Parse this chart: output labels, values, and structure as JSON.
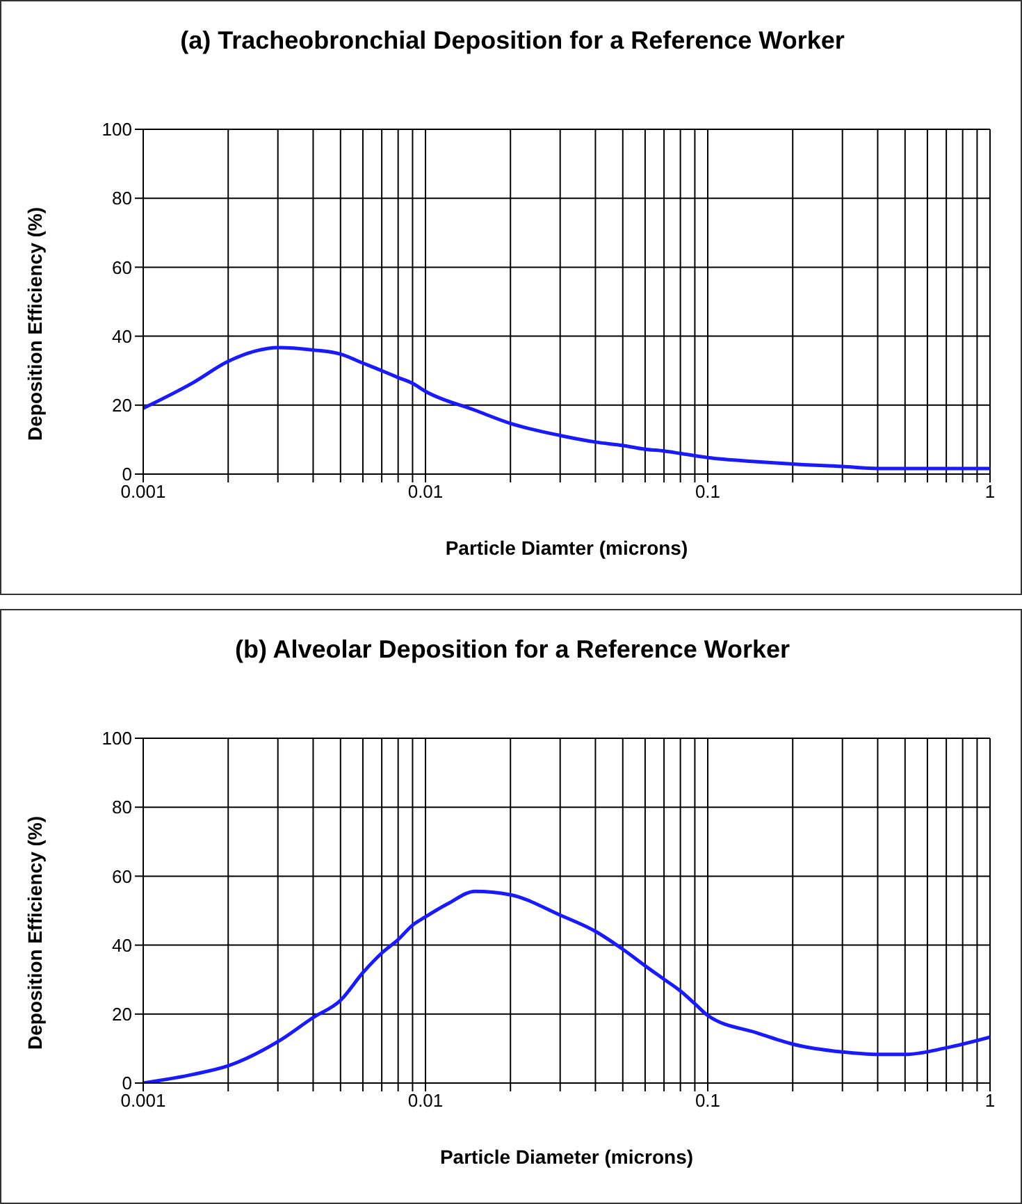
{
  "chart_data": [
    {
      "type": "line",
      "title": "(a) Tracheobronchial Deposition for a Reference Worker",
      "xlabel": "Particle Diamter (microns)",
      "ylabel": "Deposition Efficiency (%)",
      "log": "x",
      "xlim": [
        0.001,
        1
      ],
      "xticks": [
        0.001,
        {
          "value": 0.002,
          "label": null
        },
        {
          "value": 0.003,
          "label": null
        },
        {
          "value": 0.004,
          "label": null
        },
        {
          "value": 0.005,
          "label": null
        },
        {
          "value": 0.006,
          "label": null
        },
        {
          "value": 0.007,
          "label": null
        },
        {
          "value": 0.008,
          "label": null
        },
        {
          "value": 0.009,
          "label": null
        },
        0.01,
        {
          "value": 0.02,
          "label": null
        },
        {
          "value": 0.03,
          "label": null
        },
        {
          "value": 0.04,
          "label": null
        },
        {
          "value": 0.05,
          "label": null
        },
        {
          "value": 0.06,
          "label": null
        },
        {
          "value": 0.07,
          "label": null
        },
        {
          "value": 0.08,
          "label": null
        },
        {
          "value": 0.09,
          "label": null
        },
        0.1,
        {
          "value": 0.2,
          "label": null
        },
        {
          "value": 0.3,
          "label": null
        },
        {
          "value": 0.4,
          "label": null
        },
        {
          "value": 0.5,
          "label": null
        },
        {
          "value": 0.6,
          "label": null
        },
        {
          "value": 0.7,
          "label": null
        },
        {
          "value": 0.8,
          "label": null
        },
        {
          "value": 0.9,
          "label": null
        },
        1
      ],
      "ylim": [
        0,
        100
      ],
      "yticks": [
        0,
        20,
        40,
        60,
        80,
        100
      ],
      "grid": true,
      "marker": "none",
      "line_style": "solid",
      "series": [
        {
          "color": "#1a1aff",
          "x": [
            0.001,
            0.0015,
            0.002,
            0.0025,
            0.003,
            0.004,
            0.005,
            0.006,
            0.007,
            0.008,
            0.009,
            0.01,
            0.015,
            0.02,
            0.03,
            0.04,
            0.05,
            0.06,
            0.07,
            0.08,
            0.1,
            0.15,
            0.2,
            0.3,
            0.4,
            0.6,
            1
          ],
          "values": [
            19.1,
            26.5,
            32.7,
            35.7,
            36.7,
            36,
            34.8,
            32.2,
            30,
            28,
            26.3,
            24,
            18.5,
            14.7,
            11.2,
            9.3,
            8.3,
            7.2,
            6.7,
            6,
            4.8,
            3.6,
            2.9,
            2.2,
            1.6,
            1.6,
            1.6
          ]
        }
      ]
    },
    {
      "type": "line",
      "title": "(b) Alveolar Deposition for a Reference Worker",
      "xlabel": "Particle Diameter (microns)",
      "ylabel": "Deposition Efficiency (%)",
      "log": "x",
      "xlim": [
        0.001,
        1
      ],
      "xticks": [
        0.001,
        {
          "value": 0.002,
          "label": null
        },
        {
          "value": 0.003,
          "label": null
        },
        {
          "value": 0.004,
          "label": null
        },
        {
          "value": 0.005,
          "label": null
        },
        {
          "value": 0.006,
          "label": null
        },
        {
          "value": 0.007,
          "label": null
        },
        {
          "value": 0.008,
          "label": null
        },
        {
          "value": 0.009,
          "label": null
        },
        0.01,
        {
          "value": 0.02,
          "label": null
        },
        {
          "value": 0.03,
          "label": null
        },
        {
          "value": 0.04,
          "label": null
        },
        {
          "value": 0.05,
          "label": null
        },
        {
          "value": 0.06,
          "label": null
        },
        {
          "value": 0.07,
          "label": null
        },
        {
          "value": 0.08,
          "label": null
        },
        {
          "value": 0.09,
          "label": null
        },
        0.1,
        {
          "value": 0.2,
          "label": null
        },
        {
          "value": 0.3,
          "label": null
        },
        {
          "value": 0.4,
          "label": null
        },
        {
          "value": 0.5,
          "label": null
        },
        {
          "value": 0.6,
          "label": null
        },
        {
          "value": 0.7,
          "label": null
        },
        {
          "value": 0.8,
          "label": null
        },
        {
          "value": 0.9,
          "label": null
        },
        1
      ],
      "ylim": [
        0,
        100
      ],
      "yticks": [
        0,
        20,
        40,
        60,
        80,
        100
      ],
      "grid": true,
      "marker": "none",
      "line_style": "solid",
      "series": [
        {
          "color": "#1a1aff",
          "x": [
            0.001,
            0.0015,
            0.002,
            0.003,
            0.004,
            0.005,
            0.006,
            0.007,
            0.008,
            0.009,
            0.01,
            0.012,
            0.015,
            0.02,
            0.03,
            0.04,
            0.05,
            0.06,
            0.07,
            0.08,
            0.09,
            0.1,
            0.15,
            0.2,
            0.3,
            0.4,
            0.5,
            0.7,
            1
          ],
          "values": [
            0,
            2.5,
            5,
            12,
            19,
            24,
            32,
            37.7,
            41.6,
            45.8,
            48.2,
            52,
            55.6,
            54.6,
            48.7,
            44,
            38.8,
            34,
            30.1,
            26.7,
            23,
            19.6,
            14.5,
            11.3,
            9,
            8.3,
            8.3,
            10.2,
            13.3
          ]
        }
      ]
    }
  ]
}
